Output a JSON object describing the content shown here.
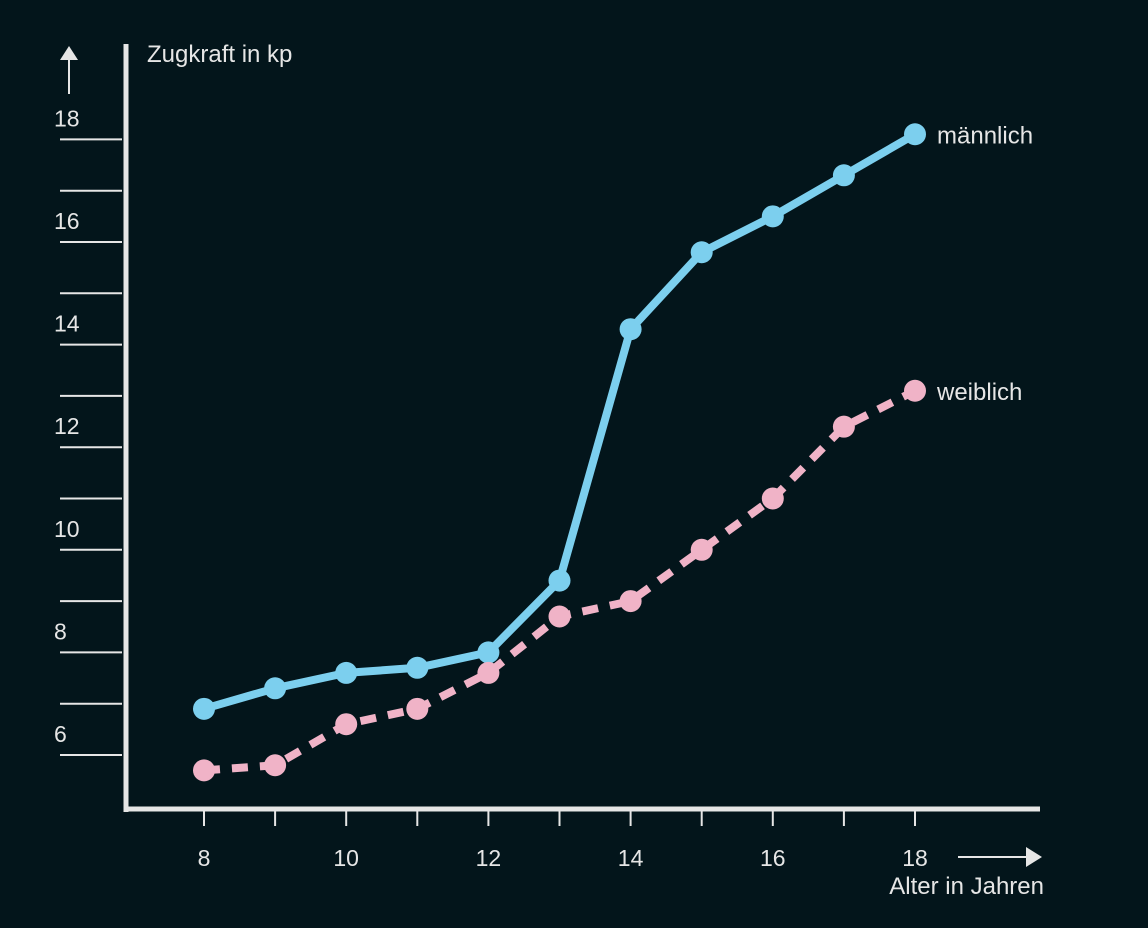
{
  "chart_data": {
    "type": "line",
    "title": "",
    "xlabel": "Alter in Jahren",
    "ylabel": "Zugkraft in kp",
    "x": [
      8,
      9,
      10,
      11,
      12,
      13,
      14,
      15,
      16,
      17,
      18
    ],
    "xlim": [
      7,
      19
    ],
    "ylim": [
      4.2,
      19.3
    ],
    "x_tick_labels": [
      "8",
      "10",
      "12",
      "14",
      "16",
      "18"
    ],
    "y_tick_labels": [
      "6",
      "8",
      "10",
      "12",
      "14",
      "16",
      "18"
    ],
    "grid": false,
    "legend": "none",
    "series": [
      {
        "name": "männlich",
        "color": "#7ccfee",
        "style": "solid",
        "values": [
          6.9,
          7.3,
          7.6,
          7.7,
          8.0,
          9.4,
          14.3,
          15.8,
          16.5,
          17.3,
          18.1
        ]
      },
      {
        "name": "weiblich",
        "color": "#f0b3c7",
        "style": "dashed",
        "values": [
          5.7,
          5.8,
          6.6,
          6.9,
          7.6,
          8.7,
          9.0,
          10.0,
          11.0,
          12.4,
          13.1
        ]
      }
    ],
    "axis_color": "#e6e6e6",
    "background": "#03151b"
  }
}
